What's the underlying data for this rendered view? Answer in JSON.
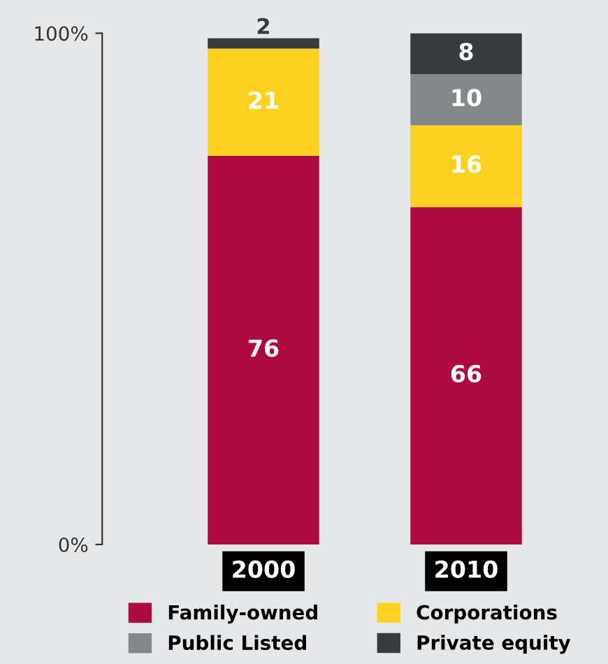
{
  "chart_data": {
    "type": "bar",
    "stacked": true,
    "categories": [
      "2000",
      "2010"
    ],
    "series": [
      {
        "name": "Family-owned",
        "color": "#ac0a40",
        "values": [
          76,
          66
        ]
      },
      {
        "name": "Corporations",
        "color": "#fdd122",
        "values": [
          21,
          16
        ]
      },
      {
        "name": "Public Listed",
        "color": "#848888",
        "values": [
          null,
          10
        ]
      },
      {
        "name": "Private equity",
        "color": "#373b3d",
        "values": [
          2,
          8
        ]
      }
    ],
    "ylim": [
      0,
      100
    ],
    "yticks": [
      {
        "value": 0,
        "label": "0%"
      },
      {
        "value": 100,
        "label": "100%"
      }
    ],
    "data_labels": true,
    "legend": "bottom",
    "grid": false
  }
}
